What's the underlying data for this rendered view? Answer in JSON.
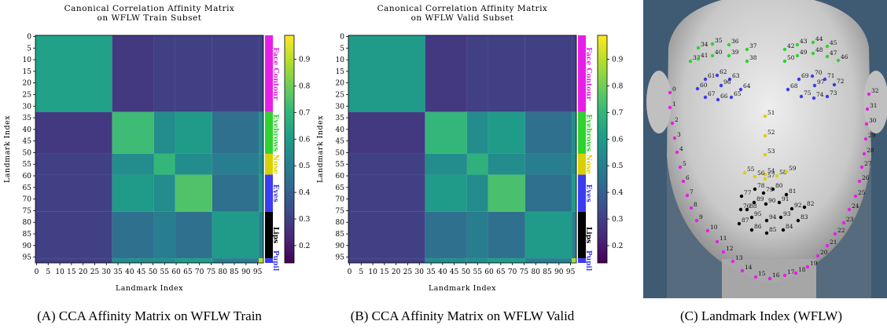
{
  "chart_data": [
    {
      "type": "heatmap",
      "title": "Canonical Correlation Affinity Matrix",
      "subtitle": "on WFLW Train Subset",
      "xlabel": "Landmark Index",
      "ylabel": "Landmark Index",
      "caption": "(A) CCA Affinity Matrix on WFLW Train",
      "xlim": [
        -0.5,
        97.5
      ],
      "ylim": [
        -0.5,
        97.5
      ],
      "xticks": [
        0,
        5,
        10,
        15,
        20,
        25,
        30,
        35,
        40,
        45,
        50,
        55,
        60,
        65,
        70,
        75,
        80,
        85,
        90,
        95
      ],
      "yticks": [
        0,
        5,
        10,
        15,
        20,
        25,
        30,
        35,
        40,
        45,
        50,
        55,
        60,
        65,
        70,
        75,
        80,
        85,
        90,
        95
      ],
      "clim": [
        0.135,
        0.99
      ],
      "cticks": [
        0.2,
        0.3,
        0.4,
        0.5,
        0.6,
        0.7,
        0.8,
        0.9
      ],
      "colormap": [
        "#440154",
        "#482878",
        "#3e4989",
        "#31688e",
        "#26828e",
        "#1f9e89",
        "#35b779",
        "#6ece58",
        "#b5de2b",
        "#fde725"
      ],
      "groups": [
        {
          "name": "Face Contour",
          "start": 0,
          "end": 32,
          "color": "#e81ee8"
        },
        {
          "name": "Eyebrows",
          "start": 33,
          "end": 50,
          "color": "#2fd22f"
        },
        {
          "name": "Nose",
          "start": 51,
          "end": 59,
          "color": "#d8d000"
        },
        {
          "name": "Eyes",
          "start": 60,
          "end": 75,
          "color": "#3b3bf0"
        },
        {
          "name": "Lips",
          "start": 76,
          "end": 95,
          "color": "#000000"
        },
        {
          "name": "Pupil",
          "start": 96,
          "end": 97,
          "color": "#3b3bf0"
        }
      ],
      "values": [
        [
          0.62,
          0.28,
          0.3,
          0.3,
          0.3,
          0.3
        ],
        [
          0.28,
          0.72,
          0.55,
          0.6,
          0.45,
          0.55
        ],
        [
          0.3,
          0.55,
          0.7,
          0.55,
          0.5,
          0.55
        ],
        [
          0.3,
          0.6,
          0.55,
          0.75,
          0.45,
          0.6
        ],
        [
          0.3,
          0.45,
          0.5,
          0.45,
          0.6,
          0.5
        ],
        [
          0.3,
          0.55,
          0.55,
          0.6,
          0.5,
          0.9
        ]
      ]
    },
    {
      "type": "heatmap",
      "title": "Canonical Correlation Affinity Matrix",
      "subtitle": "on WFLW Valid Subset",
      "xlabel": "Landmark Index",
      "ylabel": "Landmark Index",
      "caption": "(B) CCA Affinity Matrix on WFLW Valid",
      "xlim": [
        -0.5,
        97.5
      ],
      "ylim": [
        -0.5,
        97.5
      ],
      "xticks": [
        0,
        5,
        10,
        15,
        20,
        25,
        30,
        35,
        40,
        45,
        50,
        55,
        60,
        65,
        70,
        75,
        80,
        85,
        90,
        95
      ],
      "yticks": [
        0,
        5,
        10,
        15,
        20,
        25,
        30,
        35,
        40,
        45,
        50,
        55,
        60,
        65,
        70,
        75,
        80,
        85,
        90,
        95
      ],
      "clim": [
        0.135,
        0.99
      ],
      "cticks": [
        0.2,
        0.3,
        0.4,
        0.5,
        0.6,
        0.7,
        0.8,
        0.9
      ],
      "colormap": [
        "#440154",
        "#482878",
        "#3e4989",
        "#31688e",
        "#26828e",
        "#1f9e89",
        "#35b779",
        "#6ece58",
        "#b5de2b",
        "#fde725"
      ],
      "groups": [
        {
          "name": "Face Contour",
          "start": 0,
          "end": 32,
          "color": "#e81ee8"
        },
        {
          "name": "Eyebrows",
          "start": 33,
          "end": 50,
          "color": "#2fd22f"
        },
        {
          "name": "Nose",
          "start": 51,
          "end": 59,
          "color": "#d8d000"
        },
        {
          "name": "Eyes",
          "start": 60,
          "end": 75,
          "color": "#3b3bf0"
        },
        {
          "name": "Lips",
          "start": 76,
          "end": 95,
          "color": "#000000"
        },
        {
          "name": "Pupil",
          "start": 96,
          "end": 97,
          "color": "#3b3bf0"
        }
      ],
      "values": [
        [
          0.6,
          0.28,
          0.3,
          0.3,
          0.3,
          0.3
        ],
        [
          0.28,
          0.7,
          0.55,
          0.6,
          0.45,
          0.55
        ],
        [
          0.3,
          0.55,
          0.68,
          0.55,
          0.5,
          0.55
        ],
        [
          0.3,
          0.6,
          0.55,
          0.74,
          0.45,
          0.6
        ],
        [
          0.3,
          0.45,
          0.5,
          0.45,
          0.6,
          0.5
        ],
        [
          0.3,
          0.55,
          0.55,
          0.6,
          0.5,
          0.88
        ]
      ]
    }
  ],
  "face_panel": {
    "caption": "(C) Landmark Index (WFLW)",
    "landmark_labels": [
      0,
      1,
      2,
      3,
      4,
      5,
      6,
      7,
      8,
      9,
      10,
      11,
      12,
      13,
      14,
      15,
      16,
      17,
      18,
      19,
      20,
      21,
      22,
      23,
      24,
      25,
      26,
      27,
      28,
      29,
      30,
      31,
      32,
      33,
      34,
      35,
      36,
      37,
      38,
      39,
      40,
      41,
      42,
      43,
      44,
      45,
      46,
      47,
      48,
      49,
      50,
      51,
      52,
      53,
      54,
      55,
      56,
      57,
      58,
      59,
      60,
      61,
      62,
      63,
      64,
      65,
      66,
      67,
      68,
      69,
      70,
      71,
      72,
      73,
      74,
      75,
      76,
      77,
      78,
      79,
      80,
      81,
      82,
      83,
      84,
      85,
      86,
      87,
      88,
      89,
      90,
      91,
      92,
      93,
      94,
      95,
      96,
      97
    ]
  }
}
